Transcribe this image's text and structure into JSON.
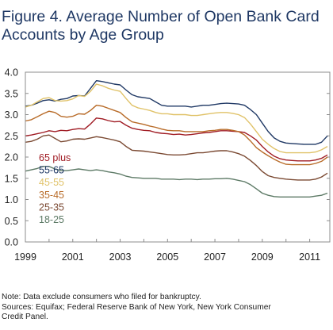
{
  "figure": {
    "title_line1": "Figure 4. Average Number of Open Bank Card",
    "title_line2": "Accounts by Age Group",
    "note_line1": "Note: Data exclude consumers who filed for bankruptcy.",
    "note_line2": "Sources: Equifax; Federal Reserve Bank of New York, New York Consumer",
    "note_line3": "Credit Panel."
  },
  "chart_data": {
    "type": "line",
    "title": "Figure 4. Average Number of Open Bank Card Accounts by Age Group",
    "xlabel": "",
    "ylabel": "",
    "xlim": [
      1999.0,
      2011.85
    ],
    "ylim": [
      0.0,
      4.0
    ],
    "yticks": [
      "0.0",
      "0.5",
      "1.0",
      "1.5",
      "2.0",
      "2.5",
      "3.0",
      "3.5",
      "4.0"
    ],
    "xticks": [
      "1999",
      "2001",
      "2003",
      "2005",
      "2007",
      "2009",
      "2011"
    ],
    "grid": false,
    "legend_position": "lower-left",
    "x": [
      1999.0,
      1999.25,
      1999.5,
      1999.75,
      2000.0,
      2000.25,
      2000.5,
      2000.75,
      2001.0,
      2001.25,
      2001.5,
      2001.75,
      2002.0,
      2002.25,
      2002.5,
      2002.75,
      2003.0,
      2003.25,
      2003.5,
      2003.75,
      2004.0,
      2004.25,
      2004.5,
      2004.75,
      2005.0,
      2005.25,
      2005.5,
      2005.75,
      2006.0,
      2006.25,
      2006.5,
      2006.75,
      2007.0,
      2007.25,
      2007.5,
      2007.75,
      2008.0,
      2008.25,
      2008.5,
      2008.75,
      2009.0,
      2009.25,
      2009.5,
      2009.75,
      2010.0,
      2010.25,
      2010.5,
      2010.75,
      2011.0,
      2011.25,
      2011.5,
      2011.75
    ],
    "series": [
      {
        "name": "65 plus",
        "color": "#a01c24",
        "values": [
          2.5,
          2.52,
          2.55,
          2.58,
          2.62,
          2.6,
          2.63,
          2.62,
          2.65,
          2.67,
          2.66,
          2.78,
          2.92,
          2.9,
          2.86,
          2.83,
          2.84,
          2.75,
          2.68,
          2.65,
          2.63,
          2.62,
          2.58,
          2.56,
          2.55,
          2.53,
          2.54,
          2.52,
          2.53,
          2.55,
          2.57,
          2.58,
          2.6,
          2.62,
          2.62,
          2.61,
          2.6,
          2.58,
          2.5,
          2.4,
          2.25,
          2.12,
          2.02,
          1.96,
          1.93,
          1.92,
          1.91,
          1.91,
          1.91,
          1.93,
          1.97,
          2.05
        ]
      },
      {
        "name": "55-65",
        "color": "#1f3864",
        "values": [
          3.2,
          3.22,
          3.27,
          3.33,
          3.35,
          3.32,
          3.36,
          3.38,
          3.44,
          3.45,
          3.44,
          3.62,
          3.8,
          3.78,
          3.75,
          3.72,
          3.7,
          3.58,
          3.47,
          3.42,
          3.4,
          3.38,
          3.3,
          3.22,
          3.2,
          3.2,
          3.2,
          3.2,
          3.18,
          3.2,
          3.22,
          3.22,
          3.24,
          3.26,
          3.27,
          3.26,
          3.25,
          3.22,
          3.12,
          3.0,
          2.8,
          2.6,
          2.45,
          2.37,
          2.33,
          2.32,
          2.31,
          2.3,
          2.3,
          2.3,
          2.35,
          2.5
        ]
      },
      {
        "name": "45-55",
        "color": "#e0c268",
        "values": [
          3.18,
          3.22,
          3.3,
          3.38,
          3.4,
          3.33,
          3.32,
          3.33,
          3.37,
          3.45,
          3.43,
          3.55,
          3.72,
          3.68,
          3.62,
          3.58,
          3.55,
          3.38,
          3.22,
          3.16,
          3.13,
          3.1,
          3.05,
          3.02,
          3.02,
          3.0,
          3.0,
          3.0,
          2.98,
          2.98,
          3.0,
          3.02,
          3.04,
          3.05,
          3.05,
          3.03,
          3.0,
          2.93,
          2.78,
          2.6,
          2.42,
          2.3,
          2.2,
          2.13,
          2.1,
          2.1,
          2.1,
          2.1,
          2.1,
          2.12,
          2.17,
          2.25
        ]
      },
      {
        "name": "35-45",
        "color": "#b86b28",
        "values": [
          2.85,
          2.88,
          2.95,
          3.02,
          3.08,
          3.05,
          2.96,
          2.94,
          2.96,
          3.02,
          3.01,
          3.1,
          3.22,
          3.2,
          3.15,
          3.1,
          3.05,
          2.93,
          2.83,
          2.8,
          2.77,
          2.73,
          2.7,
          2.66,
          2.63,
          2.62,
          2.62,
          2.6,
          2.6,
          2.6,
          2.6,
          2.62,
          2.63,
          2.65,
          2.65,
          2.63,
          2.6,
          2.52,
          2.38,
          2.22,
          2.12,
          2.03,
          1.95,
          1.88,
          1.83,
          1.82,
          1.82,
          1.82,
          1.82,
          1.85,
          1.9,
          2.0
        ]
      },
      {
        "name": "25-35",
        "color": "#7b4a33",
        "values": [
          2.35,
          2.37,
          2.42,
          2.5,
          2.52,
          2.44,
          2.36,
          2.38,
          2.42,
          2.43,
          2.42,
          2.45,
          2.48,
          2.46,
          2.43,
          2.4,
          2.36,
          2.25,
          2.16,
          2.15,
          2.14,
          2.12,
          2.1,
          2.08,
          2.06,
          2.05,
          2.05,
          2.06,
          2.08,
          2.1,
          2.1,
          2.12,
          2.14,
          2.15,
          2.15,
          2.12,
          2.08,
          2.02,
          1.92,
          1.8,
          1.66,
          1.56,
          1.52,
          1.5,
          1.48,
          1.47,
          1.46,
          1.46,
          1.46,
          1.48,
          1.53,
          1.62
        ]
      },
      {
        "name": "18-25",
        "color": "#5d7a66",
        "values": [
          1.67,
          1.7,
          1.73,
          1.78,
          1.78,
          1.72,
          1.68,
          1.68,
          1.7,
          1.72,
          1.7,
          1.68,
          1.7,
          1.68,
          1.65,
          1.63,
          1.6,
          1.55,
          1.52,
          1.51,
          1.5,
          1.5,
          1.5,
          1.48,
          1.48,
          1.48,
          1.47,
          1.48,
          1.48,
          1.47,
          1.48,
          1.48,
          1.49,
          1.49,
          1.5,
          1.48,
          1.45,
          1.42,
          1.35,
          1.25,
          1.15,
          1.1,
          1.07,
          1.06,
          1.06,
          1.06,
          1.06,
          1.06,
          1.06,
          1.08,
          1.1,
          1.15
        ]
      }
    ]
  }
}
